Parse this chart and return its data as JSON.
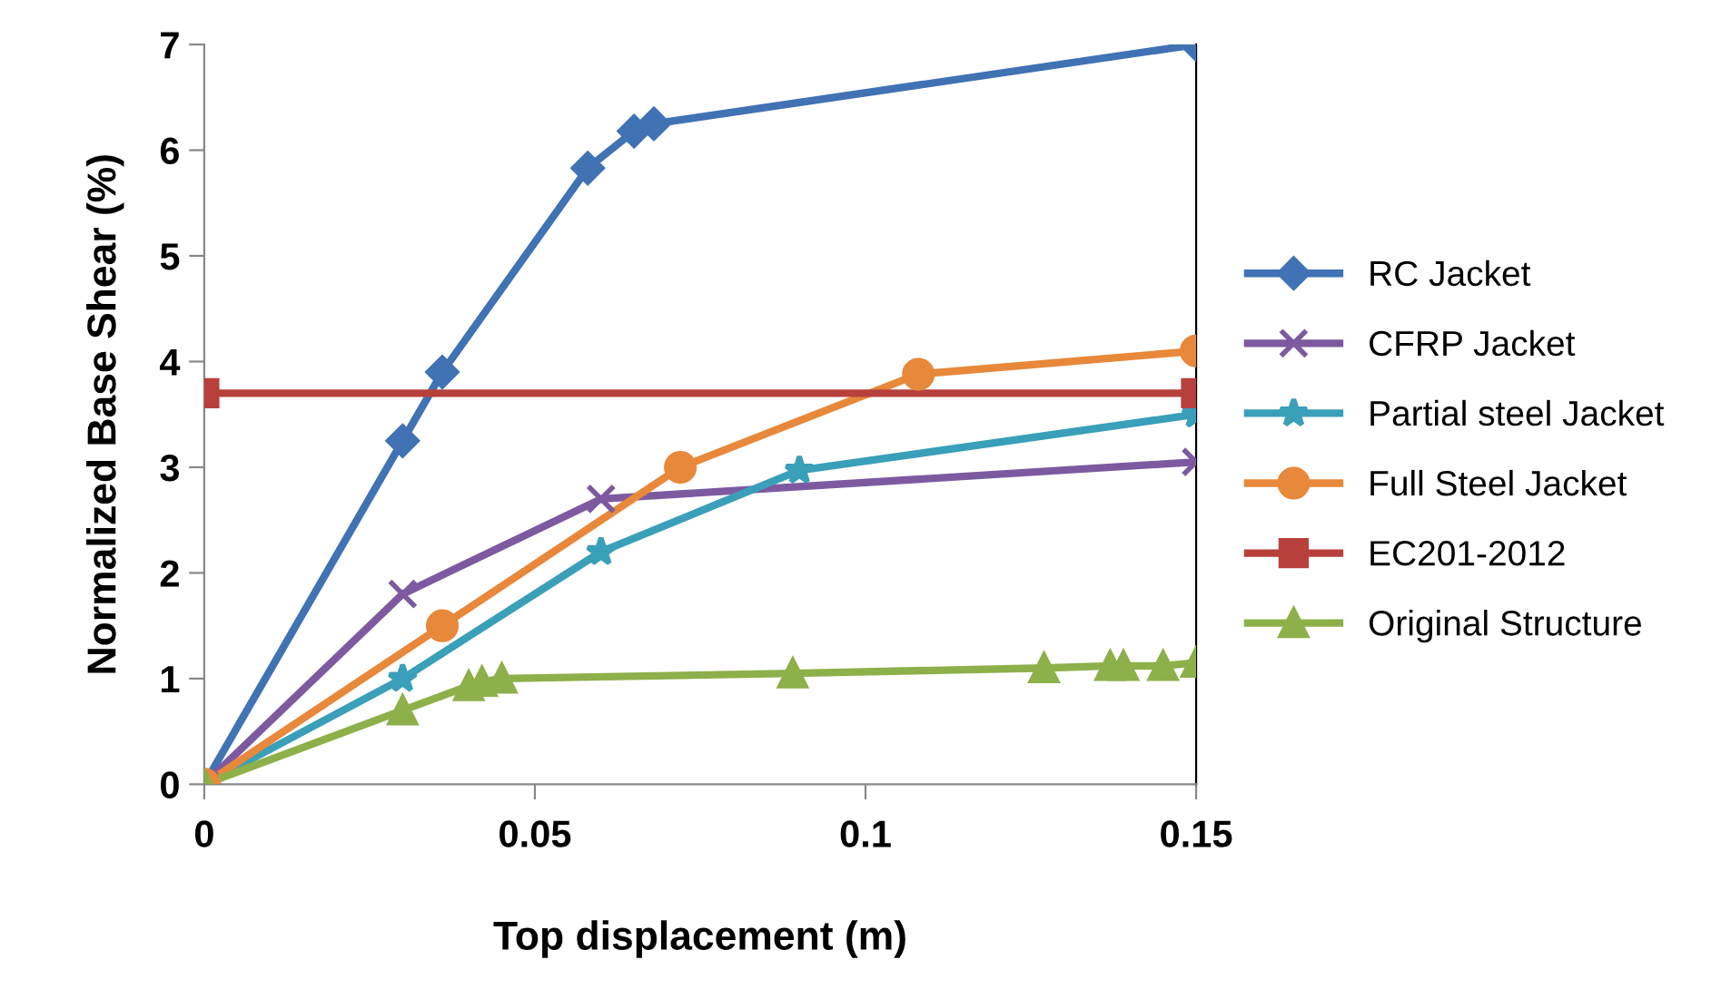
{
  "chart_data": {
    "type": "line",
    "xlabel": "Top displacement (m)",
    "ylabel": "Normalized Base Shear (%)",
    "xlim": [
      0,
      0.15
    ],
    "ylim": [
      0,
      7
    ],
    "xticks": [
      0,
      0.05,
      0.1,
      0.15
    ],
    "yticks": [
      0,
      1,
      2,
      3,
      4,
      5,
      6,
      7
    ],
    "grid": false,
    "legend": "right",
    "series": [
      {
        "name": "RC Jacket",
        "color": "#4072b4",
        "marker": "diamond",
        "x": [
          0,
          0.03,
          0.036,
          0.058,
          0.065,
          0.068,
          0.15
        ],
        "values": [
          0,
          3.25,
          3.9,
          5.83,
          6.18,
          6.25,
          7.0
        ]
      },
      {
        "name": "CFRP Jacket",
        "color": "#7d5aa0",
        "marker": "cross",
        "x": [
          0,
          0.03,
          0.06,
          0.15
        ],
        "values": [
          0,
          1.8,
          2.7,
          3.05
        ]
      },
      {
        "name": "Partial steel Jacket",
        "color": "#3a9fb8",
        "marker": "star",
        "x": [
          0,
          0.03,
          0.06,
          0.09,
          0.15
        ],
        "values": [
          0,
          1.0,
          2.2,
          2.97,
          3.5
        ]
      },
      {
        "name": "Full Steel Jacket",
        "color": "#e8883a",
        "marker": "circle",
        "x": [
          0,
          0.036,
          0.072,
          0.108,
          0.15
        ],
        "values": [
          0,
          1.5,
          3.0,
          3.88,
          4.1
        ]
      },
      {
        "name": "EC201-2012",
        "color": "#b7403c",
        "marker": "square",
        "x": [
          0,
          0.15
        ],
        "values": [
          3.7,
          3.7
        ]
      },
      {
        "name": "Original Structure",
        "color": "#8db04a",
        "marker": "triangle",
        "x": [
          0,
          0.03,
          0.04,
          0.042,
          0.045,
          0.089,
          0.127,
          0.137,
          0.139,
          0.145,
          0.15
        ],
        "values": [
          0,
          0.7,
          0.93,
          0.97,
          1.0,
          1.05,
          1.1,
          1.12,
          1.12,
          1.12,
          1.15
        ]
      }
    ]
  }
}
